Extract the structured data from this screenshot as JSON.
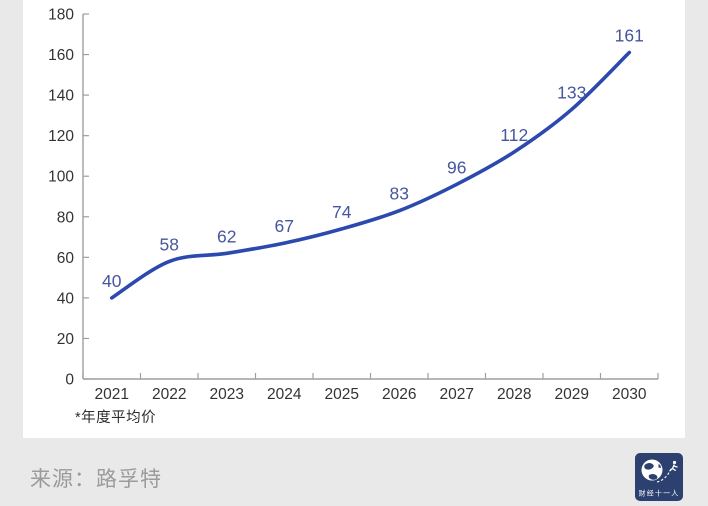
{
  "page": {
    "footnote": "*年度平均价",
    "source_label": "来源：路孚特",
    "logo_text": "财经十一人",
    "colors": {
      "page_bg": "#e9e9e9",
      "card_bg": "#ffffff",
      "line": "#2b49ae",
      "data_label": "#47569f",
      "axis": "#9e9e9e",
      "axis_text": "#333333",
      "footnote_text": "#2e2e2e",
      "source_text": "#9b9b9b",
      "logo_bg": "#2c4170",
      "logo_fg": "#ffffff"
    }
  },
  "chart_data": {
    "type": "line",
    "title": "",
    "xlabel": "",
    "ylabel": "",
    "categories": [
      "2021",
      "2022",
      "2023",
      "2024",
      "2025",
      "2026",
      "2027",
      "2028",
      "2029",
      "2030"
    ],
    "values": [
      40,
      58,
      62,
      67,
      74,
      83,
      96,
      112,
      133,
      161
    ],
    "data_labels": [
      "40",
      "58",
      "62",
      "67",
      "74",
      "83",
      "96",
      "112",
      "133",
      "161"
    ],
    "series_name": "年度平均价",
    "ylim": [
      0,
      180
    ],
    "ytick_step": 20,
    "y_tick_labels": [
      "0",
      "20",
      "40",
      "60",
      "80",
      "100",
      "120",
      "140",
      "160",
      "180"
    ],
    "grid": false,
    "legend_position": "none",
    "line_smooth": true
  }
}
